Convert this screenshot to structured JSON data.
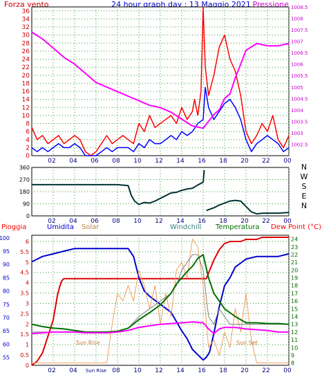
{
  "header": {
    "left_label": "Forza vento",
    "title": "24 hour graph day : 13 Maggio 2021",
    "right_label": "Pressione"
  },
  "colors": {
    "wind_gust": "#ff0000",
    "wind_avg": "#0000ff",
    "pressure": "#ff00ff",
    "direction": "#003333",
    "rain": "#e00000",
    "humidity": "#0000cc",
    "solar": "#f0a060",
    "windchill": "#808080",
    "temperature": "#007000",
    "dewpoint": "#ff00ff",
    "grid": "#339933"
  },
  "chart_data": [
    {
      "type": "line",
      "x_ticks": [
        "02",
        "04",
        "06",
        "08",
        "10",
        "12",
        "14",
        "16",
        "18",
        "20",
        "22",
        "00"
      ],
      "left_axis": {
        "label": "Forza vento",
        "ticks": [
          "0",
          "2",
          "4",
          "6",
          "8",
          "10",
          "12",
          "14",
          "16",
          "18",
          "20",
          "22",
          "24",
          "26",
          "28",
          "30",
          "32",
          "34",
          "36"
        ],
        "ylim": [
          0,
          37
        ]
      },
      "right_axis": {
        "label": "Pressione",
        "ticks": [
          "1002.5",
          "1003",
          "1003.5",
          "1004",
          "1004.5",
          "1005",
          "1005.5",
          "1006",
          "1006.5",
          "1007",
          "1007.5",
          "1008",
          "1008.5"
        ],
        "ylim": [
          1002,
          1008.5
        ]
      },
      "series": [
        {
          "name": "Forza vento",
          "key": "wind_gust",
          "axis": "left",
          "x": [
            0,
            0.5,
            1,
            1.5,
            2,
            2.5,
            3,
            3.5,
            4,
            4.5,
            5,
            5.5,
            6,
            6.5,
            7,
            7.5,
            8,
            8.5,
            9,
            9.5,
            10,
            10.5,
            11,
            11.5,
            12,
            12.5,
            13,
            13.5,
            14,
            14.5,
            15,
            15.2,
            15.5,
            15.8,
            16,
            16.2,
            16.5,
            17,
            17.5,
            18,
            18.5,
            19,
            19.5,
            20,
            20.5,
            21,
            21.5,
            22,
            22.5,
            23,
            23.5,
            24
          ],
          "y": [
            7,
            4,
            5,
            3,
            4,
            5,
            3,
            4,
            5,
            4,
            1,
            0,
            1,
            3,
            5,
            3,
            4,
            5,
            4,
            3,
            8,
            6,
            10,
            7,
            8,
            9,
            10,
            8,
            12,
            9,
            11,
            14,
            10,
            16,
            37,
            22,
            15,
            20,
            27,
            30,
            24,
            21,
            15,
            6,
            3,
            5,
            8,
            6,
            10,
            4,
            2,
            5
          ]
        },
        {
          "name": "Wind average",
          "key": "wind_avg",
          "axis": "left",
          "x": [
            0,
            0.5,
            1,
            1.5,
            2,
            2.5,
            3,
            3.5,
            4,
            4.5,
            5,
            5.5,
            6,
            6.5,
            7,
            7.5,
            8,
            8.5,
            9,
            9.5,
            10,
            10.5,
            11,
            11.5,
            12,
            12.5,
            13,
            13.5,
            14,
            14.5,
            15,
            15.5,
            16,
            16.2,
            16.5,
            17,
            17.5,
            18,
            18.5,
            19,
            19.5,
            20,
            20.5,
            21,
            21.5,
            22,
            22.5,
            23,
            23.5,
            24
          ],
          "y": [
            2,
            1,
            2,
            1,
            2,
            3,
            2,
            2,
            3,
            2,
            0,
            0,
            0,
            1,
            2,
            1,
            2,
            2,
            2,
            1,
            3,
            2,
            4,
            3,
            3,
            4,
            5,
            4,
            6,
            5,
            6,
            8,
            9,
            17,
            12,
            9,
            11,
            13,
            14,
            12,
            9,
            4,
            1,
            3,
            4,
            5,
            4,
            3,
            1,
            2
          ]
        },
        {
          "name": "Pressione",
          "key": "pressure",
          "axis": "right",
          "x": [
            0,
            1,
            2,
            3,
            4,
            5,
            6,
            7,
            8,
            9,
            10,
            11,
            12,
            13,
            14,
            15,
            16,
            16.5,
            17,
            17.5,
            18,
            18.5,
            19,
            19.5,
            20,
            21,
            22,
            23,
            24
          ],
          "y": [
            1007.4,
            1007.1,
            1006.7,
            1006.3,
            1006,
            1005.6,
            1005.2,
            1005,
            1004.8,
            1004.6,
            1004.4,
            1004.2,
            1004.1,
            1003.9,
            1003.6,
            1003.3,
            1003.2,
            1003.5,
            1003.8,
            1004,
            1004.5,
            1004.7,
            1005.4,
            1006,
            1006.6,
            1006.9,
            1006.8,
            1006.8,
            1006.9
          ]
        }
      ]
    },
    {
      "type": "line",
      "x_ticks": [
        "02",
        "04",
        "06",
        "08",
        "10",
        "12",
        "14",
        "16",
        "18",
        "20",
        "22",
        "00"
      ],
      "left_axis": {
        "ticks": [
          "0",
          "90",
          "180",
          "270",
          "360"
        ],
        "ylim": [
          0,
          360
        ]
      },
      "right_axis": {
        "ticks": [
          "N",
          "W",
          "S",
          "E",
          "N"
        ]
      },
      "series": [
        {
          "name": "Direction",
          "key": "direction",
          "x": [
            0,
            1,
            2,
            3,
            4,
            5,
            6,
            7,
            8,
            9,
            9.3,
            9.6,
            10,
            10.5,
            11,
            11.5,
            12,
            12.5,
            13,
            13.5,
            14,
            14.5,
            15,
            15.5,
            16,
            16.1,
            16.3,
            17,
            17.5,
            18,
            18.5,
            19,
            19.5,
            20,
            20.5,
            21,
            21.5,
            22,
            23,
            24
          ],
          "y": [
            232,
            232,
            232,
            232,
            232,
            232,
            232,
            232,
            232,
            225,
            150,
            110,
            85,
            100,
            95,
            110,
            130,
            150,
            170,
            175,
            190,
            200,
            205,
            230,
            250,
            340,
            40,
            60,
            80,
            95,
            110,
            115,
            110,
            70,
            30,
            15,
            20,
            20,
            20,
            25
          ]
        }
      ]
    },
    {
      "type": "line",
      "x_ticks": [
        "02",
        "04",
        "Sun Rise",
        "08",
        "10",
        "12",
        "14",
        "16",
        "18",
        "20",
        "22",
        "00"
      ],
      "annotations": [
        "Sun Rise",
        "Sun Set"
      ],
      "legend": [
        "Pioggia",
        "Umidita",
        "Solar",
        "Windchill",
        "Temperatura",
        "Dew Point (°C)"
      ],
      "left_axis_rain": {
        "ticks": [
          "0",
          "0.5",
          "1",
          "1.5",
          "2",
          "2.5",
          "3",
          "3.5",
          "4",
          "4.5",
          "5",
          "5.5",
          "6"
        ],
        "ylim": [
          0,
          6.3
        ]
      },
      "left_axis_humidity": {
        "ticks": [
          "55",
          "60",
          "65",
          "70",
          "75",
          "80",
          "85",
          "90",
          "95",
          "100"
        ],
        "ylim": [
          52,
          101
        ]
      },
      "right_axis": {
        "ticks": [
          "8",
          "9",
          "10",
          "11",
          "12",
          "13",
          "14",
          "15",
          "16",
          "17",
          "18",
          "19",
          "20",
          "21",
          "22",
          "23",
          "24"
        ],
        "ylim": [
          7.7,
          24.5
        ]
      },
      "series": [
        {
          "name": "Pioggia",
          "key": "rain",
          "axis": "rain",
          "x": [
            0,
            0.5,
            1,
            1.5,
            2,
            2.2,
            2.4,
            2.6,
            2.8,
            3,
            3.2,
            3.5,
            4,
            16,
            16.3,
            17,
            17.5,
            18,
            18.5,
            19,
            19.5,
            20,
            20.5,
            21,
            21.5,
            22,
            23,
            24
          ],
          "y": [
            0,
            0.2,
            0.6,
            1.4,
            2.2,
            2.8,
            3.4,
            3.8,
            4.1,
            4.2,
            4.2,
            4.2,
            4.2,
            4.2,
            4.2,
            5.1,
            5.6,
            5.9,
            6,
            6,
            6,
            6.1,
            6.1,
            6.1,
            6.2,
            6.2,
            6.2,
            6.2
          ]
        },
        {
          "name": "Umidita",
          "key": "humidity",
          "axis": "humidity",
          "x": [
            0,
            0.5,
            1,
            2,
            3,
            4,
            5,
            6,
            7,
            8,
            9,
            9.5,
            10,
            10.5,
            11,
            12,
            13,
            14,
            14.5,
            15,
            15.5,
            16,
            16.3,
            16.6,
            17,
            17.5,
            18,
            18.5,
            19,
            20,
            21,
            22,
            23,
            24
          ],
          "y": [
            91,
            92,
            93,
            94,
            95,
            96,
            96,
            96,
            96,
            96,
            96,
            93,
            85,
            80,
            78,
            75,
            72,
            65,
            62,
            58,
            56,
            54,
            55,
            57,
            64,
            74,
            82,
            85,
            89,
            92,
            93,
            93,
            93,
            94
          ]
        },
        {
          "name": "Solar",
          "key": "solar",
          "axis": "right",
          "x": [
            0,
            6.5,
            7,
            7.5,
            8,
            8.5,
            9,
            9.5,
            10,
            10.5,
            11,
            11.5,
            12,
            12.5,
            13,
            13.5,
            14,
            14.5,
            15,
            15.5,
            16,
            16.5,
            17,
            17.5,
            18,
            18.5,
            19,
            19.5,
            20,
            20.5,
            21,
            24
          ],
          "y": [
            8,
            8,
            8,
            13,
            17,
            16,
            18,
            16,
            20,
            18,
            15,
            18,
            13,
            17,
            14,
            20,
            21,
            19,
            24,
            23,
            18,
            10,
            11,
            9,
            12,
            10,
            15,
            12,
            17,
            11,
            8,
            8
          ]
        },
        {
          "name": "Windchill",
          "key": "windchill",
          "axis": "right",
          "x": [
            0,
            1,
            2,
            3,
            4,
            5,
            6,
            7,
            8,
            9,
            10,
            11,
            12,
            13,
            13.5,
            14,
            14.5,
            15,
            15.5,
            16,
            16.5,
            17,
            17.5,
            18,
            18.5,
            19,
            20,
            21,
            22,
            23,
            24
          ],
          "y": [
            12,
            12,
            12,
            12,
            12,
            12,
            12,
            12,
            12,
            12.5,
            14,
            15,
            16,
            17,
            18,
            20,
            21,
            22,
            22,
            20,
            14,
            13,
            15,
            14,
            13,
            13,
            13,
            13,
            13,
            13,
            13
          ]
        },
        {
          "name": "Temperatura",
          "key": "temperature",
          "axis": "right",
          "x": [
            0,
            1,
            2,
            3,
            4,
            5,
            6,
            7,
            8,
            9,
            10,
            11,
            12,
            13,
            13.5,
            14,
            14.5,
            15,
            15.5,
            16,
            16.5,
            17,
            17.5,
            18,
            18.5,
            19,
            20,
            21,
            22,
            23,
            24
          ],
          "y": [
            13,
            12.7,
            12.5,
            12.4,
            12.2,
            12,
            12,
            12,
            12.1,
            12.5,
            13.6,
            14.5,
            15.5,
            17,
            18.2,
            19,
            19.8,
            20.5,
            21.5,
            22,
            19,
            17,
            16,
            15,
            14.5,
            14,
            13.2,
            13.2,
            13.1,
            13.1,
            13
          ]
        },
        {
          "name": "Dew Point",
          "key": "dewpoint",
          "axis": "right",
          "x": [
            0,
            1,
            2,
            3,
            4,
            5,
            6,
            7,
            8,
            9,
            10,
            11,
            12,
            13,
            14,
            15,
            16,
            16.5,
            17,
            17.5,
            18,
            19,
            20,
            21,
            22,
            23,
            24
          ],
          "y": [
            11.8,
            11.9,
            12,
            12,
            12,
            11.9,
            11.9,
            11.9,
            12,
            12.2,
            12.6,
            12.8,
            13,
            13.1,
            13.2,
            13.3,
            13.2,
            12.4,
            11.8,
            12.4,
            12.6,
            12.6,
            12.4,
            12.3,
            12.2,
            12,
            12
          ]
        }
      ]
    }
  ]
}
